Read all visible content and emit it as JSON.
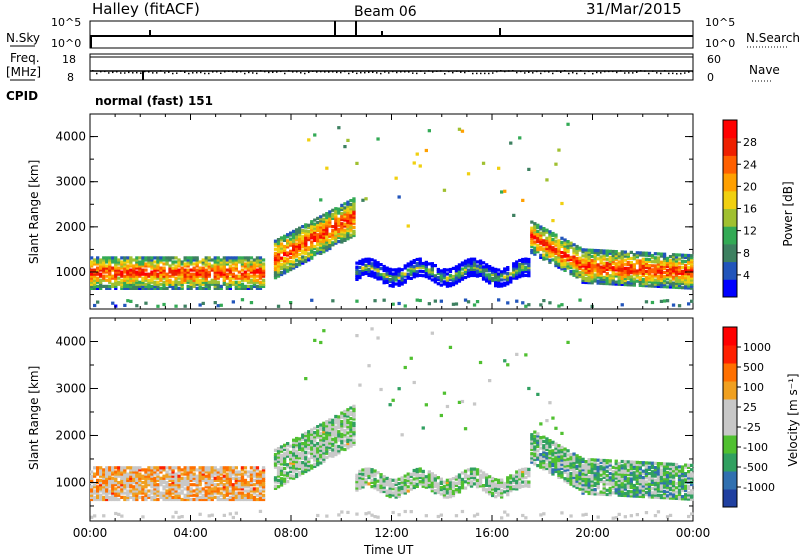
{
  "header": {
    "title": "Halley (fitACF)",
    "beam": "Beam 06",
    "date": "31/Mar/2015"
  },
  "nsky_panel": {
    "left_label": "N.Sky",
    "right_label": "N.Search",
    "left_ticks": [
      "10^5",
      "10^0"
    ],
    "right_ticks": [
      "10^5",
      "10^0"
    ]
  },
  "freq_panel": {
    "left_label": "Freq.",
    "left_unit": "[MHz]",
    "right_label": "Nave",
    "left_ticks": [
      "18",
      "8"
    ],
    "right_ticks": [
      "60",
      "0"
    ]
  },
  "cpid": {
    "label": "CPID",
    "value": "normal (fast) 151"
  },
  "chart_data": [
    {
      "type": "heatmap",
      "name": "power",
      "ylabel": "Slant Range [km]",
      "y_ticks": [
        "4000",
        "3000",
        "2000",
        "1000"
      ],
      "yrange": [
        180,
        4500
      ],
      "colorbar_label": "Power [dB]",
      "colorbar_ticks": [
        "28",
        "24",
        "20",
        "16",
        "12",
        "8",
        "4"
      ],
      "colorbar_colors": [
        "#0000ff",
        "#2255bb",
        "#3d8060",
        "#33aa55",
        "#a0c030",
        "#f0d010",
        "#ffa000",
        "#ff6000",
        "#ee2000",
        "#ff0000"
      ],
      "vrange": [
        0,
        32
      ]
    },
    {
      "type": "heatmap",
      "name": "velocity",
      "ylabel": "Slant Range [km]",
      "y_ticks": [
        "4000",
        "3000",
        "2000",
        "1000"
      ],
      "yrange": [
        180,
        4500
      ],
      "colorbar_label": "Velocity [m s⁻¹]",
      "colorbar_ticks": [
        "1000",
        "500",
        "100",
        "25",
        "-25",
        "-100",
        "-500",
        "-1000"
      ],
      "colorbar_colors": [
        "#2040a0",
        "#3070b0",
        "#30a060",
        "#50c030",
        "#c8c8c8",
        "#c8c8c8",
        "#f0a020",
        "#ff7000",
        "#ff2000",
        "#ff0000"
      ],
      "vrange": [
        -1200,
        1200
      ]
    }
  ],
  "time_axis": {
    "label": "Time UT",
    "ticks": [
      "00:00",
      "04:00",
      "08:00",
      "12:00",
      "16:00",
      "20:00",
      "00:00"
    ],
    "range_hours": [
      0,
      24
    ]
  }
}
